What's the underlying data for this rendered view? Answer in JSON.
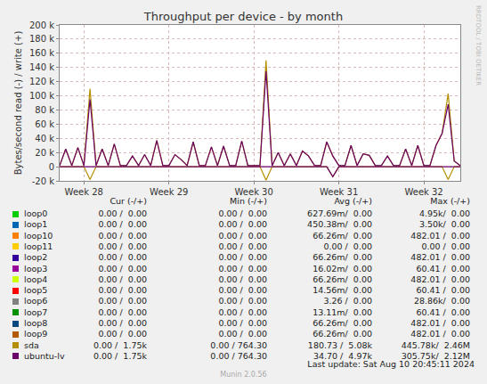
{
  "chart_data": {
    "type": "line",
    "title": "Throughput per device - by month",
    "y_label": "Bytes/second read (-) / write (+)",
    "categories": [
      null,
      null,
      null,
      null,
      "Week 28",
      null,
      null,
      null,
      null,
      null,
      null,
      null,
      null,
      null,
      null,
      null,
      null,
      null,
      "Week 29",
      null,
      null,
      null,
      null,
      null,
      null,
      null,
      null,
      null,
      null,
      null,
      null,
      null,
      "Week 30",
      null,
      null,
      null,
      null,
      null,
      null,
      null,
      null,
      null,
      null,
      null,
      null,
      null,
      "Week 31",
      null,
      null,
      null,
      null,
      null,
      null,
      null,
      null,
      null,
      null,
      null,
      null,
      null,
      "Week 32",
      null,
      null,
      null,
      null,
      null,
      null
    ],
    "series": [
      {
        "name": "sda",
        "color": "#b38f00",
        "values": [
          1700,
          25000,
          1700,
          27000,
          1700,
          110000,
          1700,
          25000,
          1700,
          32000,
          1700,
          1700,
          15000,
          1700,
          17000,
          1700,
          37000,
          1700,
          1700,
          17000,
          10000,
          1700,
          35000,
          1700,
          1700,
          28000,
          1700,
          29000,
          1700,
          1700,
          36000,
          1700,
          1700,
          1700,
          150000,
          1700,
          20000,
          1700,
          18000,
          1700,
          22000,
          15000,
          1700,
          1700,
          35000,
          15000,
          1700,
          1700,
          30000,
          1700,
          18000,
          16000,
          1700,
          1700,
          15000,
          1700,
          1700,
          25000,
          1700,
          30000,
          1700,
          1700,
          30000,
          47000,
          103000,
          8000,
          1700
        ],
        "read_values": [
          0,
          0,
          0,
          0,
          0,
          -18000,
          0,
          0,
          0,
          0,
          0,
          0,
          0,
          0,
          0,
          0,
          0,
          0,
          0,
          0,
          0,
          0,
          0,
          0,
          0,
          0,
          0,
          0,
          0,
          0,
          0,
          0,
          0,
          0,
          -19000,
          0,
          0,
          0,
          0,
          0,
          0,
          0,
          0,
          0,
          0,
          -14000,
          0,
          0,
          0,
          0,
          0,
          0,
          0,
          0,
          0,
          0,
          0,
          0,
          0,
          0,
          0,
          0,
          0,
          0,
          -18000,
          0,
          0
        ]
      },
      {
        "name": "ubuntu-lv",
        "color": "#6b006b",
        "values": [
          1500,
          25000,
          1500,
          27000,
          1500,
          95000,
          1500,
          25000,
          1500,
          32000,
          1500,
          1500,
          15000,
          1500,
          17000,
          1500,
          37000,
          1500,
          1500,
          17000,
          10000,
          1500,
          35000,
          1500,
          1500,
          28000,
          1500,
          29000,
          1500,
          1500,
          36000,
          1500,
          1500,
          1500,
          135000,
          1500,
          20000,
          1500,
          18000,
          1500,
          22000,
          15000,
          1500,
          1500,
          35000,
          15000,
          1500,
          1500,
          30000,
          1500,
          18000,
          16000,
          1500,
          1500,
          15000,
          1500,
          1500,
          25000,
          1500,
          30000,
          1500,
          1500,
          30000,
          47000,
          88000,
          8000,
          1500
        ],
        "read_values": [
          0,
          0,
          0,
          0,
          0,
          0,
          0,
          0,
          0,
          0,
          0,
          0,
          0,
          0,
          0,
          0,
          0,
          0,
          0,
          0,
          0,
          0,
          0,
          0,
          0,
          0,
          0,
          0,
          0,
          0,
          0,
          0,
          0,
          0,
          0,
          0,
          0,
          0,
          0,
          0,
          0,
          0,
          0,
          0,
          0,
          -14000,
          0,
          0,
          0,
          0,
          0,
          0,
          0,
          0,
          0,
          0,
          0,
          0,
          0,
          0,
          0,
          0,
          0,
          0,
          0,
          0,
          0
        ]
      }
    ],
    "ylim": [
      -20000,
      200000
    ],
    "yticks": [
      {
        "value": -20000,
        "label": "-20 k"
      },
      0,
      {
        "value": 20000,
        "label": "20 k"
      },
      {
        "value": 40000,
        "label": "40 k"
      },
      {
        "value": 60000,
        "label": "60 k"
      },
      {
        "value": 80000,
        "label": "80 k"
      },
      {
        "value": 100000,
        "label": "100 k"
      },
      {
        "value": 120000,
        "label": "120 k"
      },
      {
        "value": 140000,
        "label": "140 k"
      },
      {
        "value": 160000,
        "label": "160 k"
      },
      {
        "value": 180000,
        "label": "180 k"
      },
      {
        "value": 200000,
        "label": "200 k"
      }
    ],
    "grid": true
  },
  "legend_table": {
    "header": [
      "Cur (-/+)",
      "Min (-/+)",
      "Avg (-/+)",
      "Max (-/+)"
    ],
    "rows": [
      {
        "name": "loop0",
        "color": "#00cc00",
        "cells": [
          "0.00 /  0.00",
          "0.00 /  0.00",
          "627.69m/  0.00",
          "4.95k/  0.00"
        ]
      },
      {
        "name": "loop1",
        "color": "#0066b3",
        "cells": [
          "0.00 /  0.00",
          "0.00 /  0.00",
          "450.38m/  0.00",
          "3.50k/  0.00"
        ]
      },
      {
        "name": "loop10",
        "color": "#ff8000",
        "cells": [
          "0.00 /  0.00",
          "0.00 /  0.00",
          "66.26m/  0.00",
          "482.01 /  0.00"
        ]
      },
      {
        "name": "loop11",
        "color": "#ffcc00",
        "cells": [
          "0.00 /  0.00",
          "0.00 /  0.00",
          "0.00 /  0.00",
          "0.00 /  0.00"
        ]
      },
      {
        "name": "loop2",
        "color": "#330099",
        "cells": [
          "0.00 /  0.00",
          "0.00 /  0.00",
          "66.26m/  0.00",
          "482.01 /  0.00"
        ]
      },
      {
        "name": "loop3",
        "color": "#990099",
        "cells": [
          "0.00 /  0.00",
          "0.00 /  0.00",
          "16.02m/  0.00",
          "60.41 /  0.00"
        ]
      },
      {
        "name": "loop4",
        "color": "#ccff00",
        "cells": [
          "0.00 /  0.00",
          "0.00 /  0.00",
          "66.26m/  0.00",
          "482.01 /  0.00"
        ]
      },
      {
        "name": "loop5",
        "color": "#ff0000",
        "cells": [
          "0.00 /  0.00",
          "0.00 /  0.00",
          "14.56m/  0.00",
          "60.41 /  0.00"
        ]
      },
      {
        "name": "loop6",
        "color": "#808080",
        "cells": [
          "0.00 /  0.00",
          "0.00 /  0.00",
          "3.26 /  0.00",
          "28.86k/  0.00"
        ]
      },
      {
        "name": "loop7",
        "color": "#008f00",
        "cells": [
          "0.00 /  0.00",
          "0.00 /  0.00",
          "13.11m/  0.00",
          "60.41 /  0.00"
        ]
      },
      {
        "name": "loop8",
        "color": "#00487d",
        "cells": [
          "0.00 /  0.00",
          "0.00 /  0.00",
          "66.26m/  0.00",
          "482.01 /  0.00"
        ]
      },
      {
        "name": "loop9",
        "color": "#b35a00",
        "cells": [
          "0.00 /  0.00",
          "0.00 /  0.00",
          "66.26m/  0.00",
          "482.01 /  0.00"
        ]
      },
      {
        "name": "sda",
        "color": "#b38f00",
        "cells": [
          "0.00 /  1.75k",
          "0.00 / 764.30",
          "180.73 /  5.08k",
          "445.78k/  2.46M"
        ]
      },
      {
        "name": "ubuntu-lv",
        "color": "#6b006b",
        "cells": [
          "0.00 /  1.75k",
          "0.00 / 764.30",
          "34.70 /  4.97k",
          "305.75k/  2.12M"
        ]
      }
    ]
  },
  "watermark": "RRDTOOL / TOBI OETIKER",
  "last_update": "Last update: Sat Aug 10 20:45:11 2024",
  "footer": "Munin 2.0.56"
}
